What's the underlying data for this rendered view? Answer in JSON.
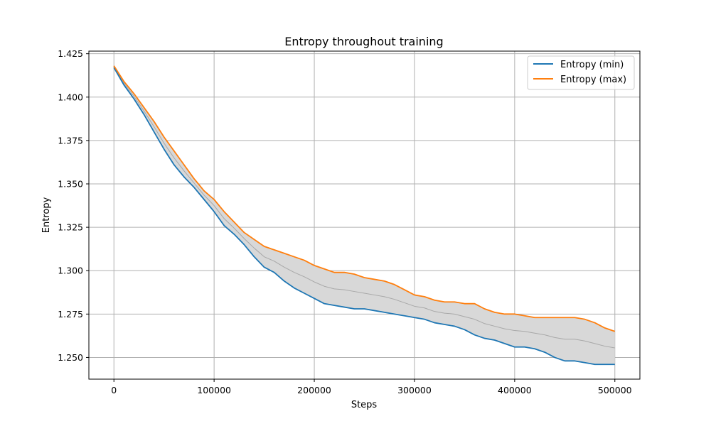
{
  "chart_data": {
    "type": "line",
    "title": "Entropy throughout training",
    "xlabel": "Steps",
    "ylabel": "Entropy",
    "xlim": [
      -25000,
      525000
    ],
    "ylim": [
      1.2375,
      1.4265
    ],
    "xticks": [
      0,
      100000,
      200000,
      300000,
      400000,
      500000
    ],
    "yticks": [
      1.25,
      1.275,
      1.3,
      1.325,
      1.35,
      1.375,
      1.4,
      1.425
    ],
    "xtick_labels": [
      "0",
      "100000",
      "200000",
      "300000",
      "400000",
      "500000"
    ],
    "ytick_labels": [
      "1.250",
      "1.275",
      "1.300",
      "1.325",
      "1.350",
      "1.375",
      "1.400",
      "1.425"
    ],
    "grid": true,
    "legend_position": "top-right",
    "fill_between": {
      "color": "#d8d8d8",
      "between": [
        "Entropy (min)",
        "Entropy (max)"
      ]
    },
    "x": [
      0,
      10000,
      20000,
      30000,
      40000,
      50000,
      60000,
      70000,
      80000,
      90000,
      100000,
      110000,
      120000,
      130000,
      140000,
      150000,
      160000,
      170000,
      180000,
      190000,
      200000,
      210000,
      220000,
      230000,
      240000,
      250000,
      260000,
      270000,
      280000,
      290000,
      300000,
      310000,
      320000,
      330000,
      340000,
      350000,
      360000,
      370000,
      380000,
      390000,
      400000,
      410000,
      420000,
      430000,
      440000,
      450000,
      460000,
      470000,
      480000,
      490000,
      500000
    ],
    "series": [
      {
        "name": "Entropy (min)",
        "color": "#1f77b4",
        "values": [
          1.417,
          1.407,
          1.399,
          1.39,
          1.38,
          1.37,
          1.361,
          1.354,
          1.348,
          1.341,
          1.334,
          1.326,
          1.321,
          1.315,
          1.308,
          1.302,
          1.299,
          1.294,
          1.29,
          1.287,
          1.284,
          1.281,
          1.28,
          1.279,
          1.278,
          1.278,
          1.277,
          1.276,
          1.275,
          1.274,
          1.273,
          1.272,
          1.27,
          1.269,
          1.268,
          1.266,
          1.263,
          1.261,
          1.26,
          1.258,
          1.256,
          1.256,
          1.255,
          1.253,
          1.25,
          1.248,
          1.248,
          1.247,
          1.246,
          1.246,
          1.246
        ]
      },
      {
        "name": "Entropy (max)",
        "color": "#ff7f0e",
        "values": [
          1.418,
          1.409,
          1.402,
          1.394,
          1.386,
          1.377,
          1.369,
          1.361,
          1.353,
          1.346,
          1.341,
          1.334,
          1.328,
          1.322,
          1.318,
          1.314,
          1.312,
          1.31,
          1.308,
          1.306,
          1.303,
          1.301,
          1.299,
          1.299,
          1.298,
          1.296,
          1.295,
          1.294,
          1.292,
          1.289,
          1.286,
          1.285,
          1.283,
          1.282,
          1.282,
          1.281,
          1.281,
          1.278,
          1.276,
          1.275,
          1.275,
          1.274,
          1.273,
          1.273,
          1.273,
          1.273,
          1.273,
          1.272,
          1.27,
          1.267,
          1.265
        ]
      },
      {
        "name": "",
        "color": "#a8a8a8",
        "values": [
          1.4175,
          1.408,
          1.4005,
          1.392,
          1.383,
          1.3735,
          1.365,
          1.3575,
          1.3505,
          1.3435,
          1.3375,
          1.33,
          1.3245,
          1.3185,
          1.313,
          1.308,
          1.3055,
          1.302,
          1.299,
          1.2965,
          1.2935,
          1.291,
          1.2895,
          1.289,
          1.288,
          1.287,
          1.286,
          1.285,
          1.2835,
          1.2815,
          1.2795,
          1.2785,
          1.2765,
          1.2755,
          1.275,
          1.2735,
          1.272,
          1.2695,
          1.268,
          1.2665,
          1.2655,
          1.265,
          1.264,
          1.263,
          1.2615,
          1.2605,
          1.2605,
          1.2595,
          1.258,
          1.2565,
          1.2555
        ]
      }
    ],
    "legend": [
      {
        "label": "Entropy (min)",
        "color": "#1f77b4"
      },
      {
        "label": "Entropy (max)",
        "color": "#ff7f0e"
      }
    ]
  }
}
